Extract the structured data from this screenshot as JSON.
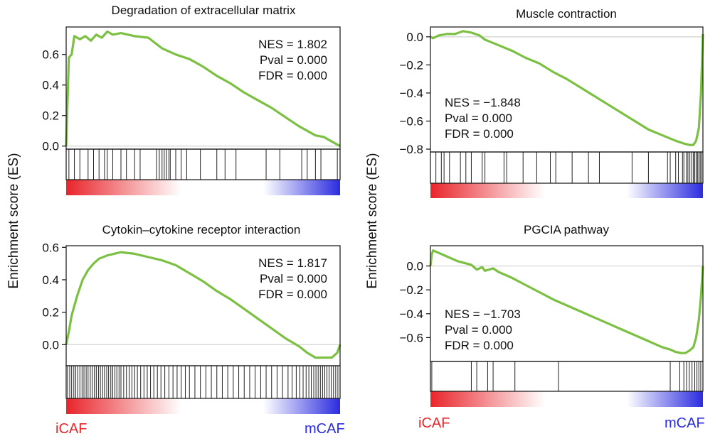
{
  "y_axis_label": "Enrichment score (ES)",
  "left_label": "iCAF",
  "right_label": "mCAF",
  "colors": {
    "curve": "#7cc043",
    "left": "#e8252b",
    "right": "#2b2be0"
  },
  "chart_data": [
    {
      "type": "line",
      "title": "Degradation of extracellular matrix",
      "stats": [
        "NES = 1.802",
        "Pval = 0.000",
        "FDR = 0.000"
      ],
      "stats_position": "top-right",
      "ylim": [
        -0.02,
        0.78
      ],
      "yticks": [
        0.0,
        0.2,
        0.4,
        0.6
      ],
      "ytick_labels": [
        "0.0",
        "0.2",
        "0.4",
        "0.6"
      ],
      "x": [
        0,
        1,
        2,
        3,
        5,
        7,
        9,
        11,
        13,
        15,
        17,
        20,
        25,
        30,
        35,
        40,
        45,
        50,
        55,
        60,
        65,
        70,
        75,
        80,
        85,
        88,
        91,
        94,
        97,
        100
      ],
      "y": [
        0.0,
        0.58,
        0.6,
        0.72,
        0.7,
        0.72,
        0.69,
        0.73,
        0.71,
        0.75,
        0.73,
        0.74,
        0.72,
        0.71,
        0.64,
        0.6,
        0.57,
        0.52,
        0.46,
        0.41,
        0.35,
        0.3,
        0.25,
        0.19,
        0.13,
        0.1,
        0.07,
        0.06,
        0.03,
        0.0
      ],
      "hits": [
        1,
        3,
        5,
        8,
        10,
        12,
        14,
        15,
        17,
        20,
        22,
        25,
        27,
        33,
        34,
        35,
        35.8,
        36.6,
        37.5,
        38,
        40,
        42,
        44,
        49,
        55,
        58,
        62,
        73,
        78,
        86,
        88,
        91,
        93,
        99
      ]
    },
    {
      "type": "line",
      "title": "Cytokin–cytokine receptor interaction",
      "stats": [
        "NES = 1.817",
        "Pval = 0.000",
        "FDR = 0.000"
      ],
      "stats_position": "top-right",
      "ylim": [
        -0.13,
        0.61
      ],
      "yticks": [
        0.0,
        0.2,
        0.4,
        0.6
      ],
      "ytick_labels": [
        "0.0",
        "0.2",
        "0.4",
        "0.6"
      ],
      "x": [
        0,
        1,
        2,
        4,
        6,
        8,
        10,
        12,
        15,
        20,
        25,
        30,
        35,
        40,
        45,
        50,
        55,
        60,
        65,
        70,
        75,
        80,
        85,
        88,
        91,
        94,
        97,
        99,
        100
      ],
      "y": [
        0.0,
        0.08,
        0.18,
        0.3,
        0.4,
        0.46,
        0.5,
        0.53,
        0.55,
        0.57,
        0.56,
        0.54,
        0.52,
        0.49,
        0.44,
        0.39,
        0.33,
        0.28,
        0.22,
        0.16,
        0.1,
        0.04,
        -0.01,
        -0.05,
        -0.08,
        -0.08,
        -0.08,
        -0.05,
        0.0
      ],
      "hits": [
        0.5,
        1.3,
        2,
        2.8,
        3.5,
        4.2,
        5,
        5.8,
        6.5,
        7.3,
        8,
        8.8,
        9.5,
        10.3,
        11,
        11.8,
        12.5,
        13.3,
        14,
        14.8,
        15.5,
        16.3,
        17,
        17.8,
        18.5,
        19.3,
        20,
        21,
        22,
        23,
        24,
        25,
        26,
        27.2,
        28.4,
        29.6,
        30.8,
        32,
        33.3,
        34.6,
        36,
        37.5,
        39,
        40.5,
        42,
        43.5,
        45,
        47,
        49,
        51,
        53,
        55,
        57,
        59,
        61,
        63,
        65,
        67,
        69,
        71,
        73,
        75,
        77,
        79,
        81,
        82.5,
        84,
        85.3,
        86.5,
        87.6,
        88.6,
        89.5,
        90.4,
        91.2,
        92,
        92.8,
        93.6,
        94.4,
        95.2,
        96,
        96.8,
        97.6,
        98.4,
        99.2
      ]
    },
    {
      "type": "line",
      "title": "Muscle contraction",
      "stats": [
        "NES = −1.848",
        "Pval = 0.000",
        "FDR = 0.000"
      ],
      "stats_position": "middle-left",
      "ylim": [
        -0.82,
        0.07
      ],
      "yticks": [
        0.0,
        -0.2,
        -0.4,
        -0.6,
        -0.8
      ],
      "ytick_labels": [
        "0.0",
        "−0.2",
        "−0.4",
        "−0.6",
        "−0.8"
      ],
      "x": [
        0,
        1,
        3,
        6,
        9,
        12,
        15,
        18,
        20,
        25,
        30,
        35,
        40,
        45,
        50,
        55,
        60,
        65,
        70,
        75,
        80,
        85,
        90,
        93,
        95,
        96.5,
        97.5,
        98.5,
        99.3,
        100
      ],
      "y": [
        0.0,
        -0.01,
        0.01,
        0.02,
        0.02,
        0.04,
        0.03,
        0.01,
        -0.02,
        -0.06,
        -0.1,
        -0.15,
        -0.19,
        -0.25,
        -0.3,
        -0.36,
        -0.42,
        -0.48,
        -0.54,
        -0.6,
        -0.66,
        -0.7,
        -0.74,
        -0.76,
        -0.77,
        -0.77,
        -0.74,
        -0.65,
        -0.4,
        0.02
      ],
      "hits": [
        2,
        4,
        5,
        7,
        11,
        13,
        15,
        19,
        20,
        27,
        28,
        34,
        39,
        44,
        46,
        52,
        58,
        62,
        74,
        80,
        87,
        88,
        90,
        91,
        92.5,
        93,
        94,
        94.5,
        95.2,
        95.9,
        96.5,
        97,
        97.5,
        98,
        98.5,
        99,
        99.5
      ]
    },
    {
      "type": "line",
      "title": "PGCIA pathway",
      "stats": [
        "NES = −1.703",
        "Pval = 0.000",
        "FDR = 0.000"
      ],
      "stats_position": "middle-left",
      "ylim": [
        -0.8,
        0.17
      ],
      "yticks": [
        0.0,
        -0.2,
        -0.4,
        -0.6
      ],
      "ytick_labels": [
        "0.0",
        "−0.2",
        "−0.4",
        "−0.6"
      ],
      "x": [
        0,
        0.5,
        1,
        5,
        10,
        15,
        17,
        19,
        20,
        23,
        25,
        30,
        35,
        40,
        45,
        50,
        55,
        60,
        65,
        70,
        75,
        80,
        85,
        88,
        90,
        92,
        93.5,
        95,
        96.5,
        97.5,
        98.5,
        99.3,
        100
      ],
      "y": [
        0.0,
        0.1,
        0.13,
        0.09,
        0.04,
        0.01,
        -0.03,
        -0.01,
        -0.04,
        -0.02,
        -0.05,
        -0.1,
        -0.16,
        -0.22,
        -0.28,
        -0.33,
        -0.38,
        -0.43,
        -0.48,
        -0.53,
        -0.58,
        -0.63,
        -0.68,
        -0.7,
        -0.72,
        -0.73,
        -0.73,
        -0.71,
        -0.68,
        -0.6,
        -0.45,
        -0.25,
        0.0
      ],
      "hits": [
        0.5,
        15,
        17,
        21,
        23,
        31,
        47,
        88,
        91.5,
        93,
        94,
        95,
        96,
        97,
        97.8,
        98.5,
        99.2
      ]
    }
  ]
}
